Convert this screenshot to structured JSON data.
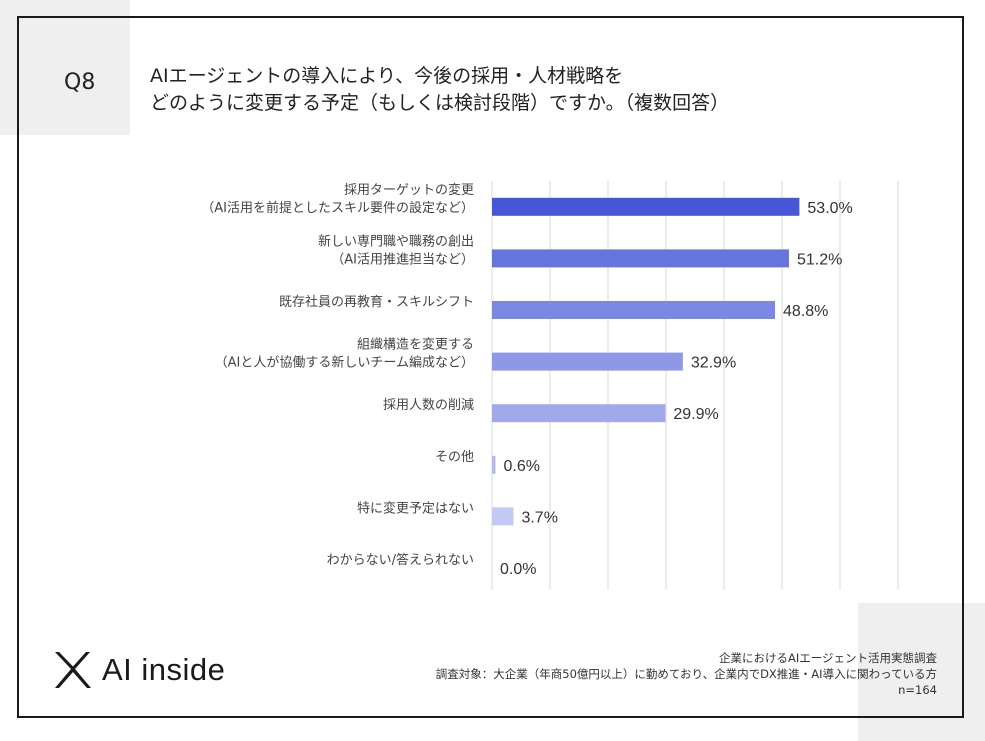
{
  "question": {
    "number": "Q8",
    "title_line1": "AIエージェントの導入により、今後の採用・人材戦略を",
    "title_line2": "どのように変更する予定（もしくは検討段階）ですか。（複数回答）"
  },
  "chart_data": {
    "type": "bar",
    "orientation": "horizontal",
    "categories": [
      [
        "採用ターゲットの変更",
        "（AI活用を前提としたスキル要件の設定など）"
      ],
      [
        "新しい専門職や職務の創出",
        "（AI活用推進担当など）"
      ],
      [
        "既存社員の再教育・スキルシフト"
      ],
      [
        "組織構造を変更する",
        "（AIと人が協働する新しいチーム編成など）"
      ],
      [
        "採用人数の削減"
      ],
      [
        "その他"
      ],
      [
        "特に変更予定はない"
      ],
      [
        "わからない/答えられない"
      ]
    ],
    "values": [
      53.0,
      51.2,
      48.8,
      32.9,
      29.9,
      0.6,
      3.7,
      0.0
    ],
    "value_labels": [
      "53.0%",
      "51.2%",
      "48.8%",
      "32.9%",
      "29.9%",
      "0.6%",
      "3.7%",
      "0.0%"
    ],
    "bar_colors": [
      "#4556d6",
      "#6675de",
      "#7a88e2",
      "#8d99e6",
      "#a0aaeb",
      "#b3bbef",
      "#c3c9f3",
      "#d2d6f6"
    ],
    "xlim": [
      0,
      70
    ],
    "grid": true,
    "gridline_color": "#d9d9d9"
  },
  "footer": {
    "logo_text": "AI inside",
    "source_line1": "企業におけるAIエージェント活用実態調査",
    "source_line2": "調査対象：大企業（年商50億円以上）に勤めており、企業内でDX推進・AI導入に関わっている方",
    "source_line3": "n=164"
  }
}
